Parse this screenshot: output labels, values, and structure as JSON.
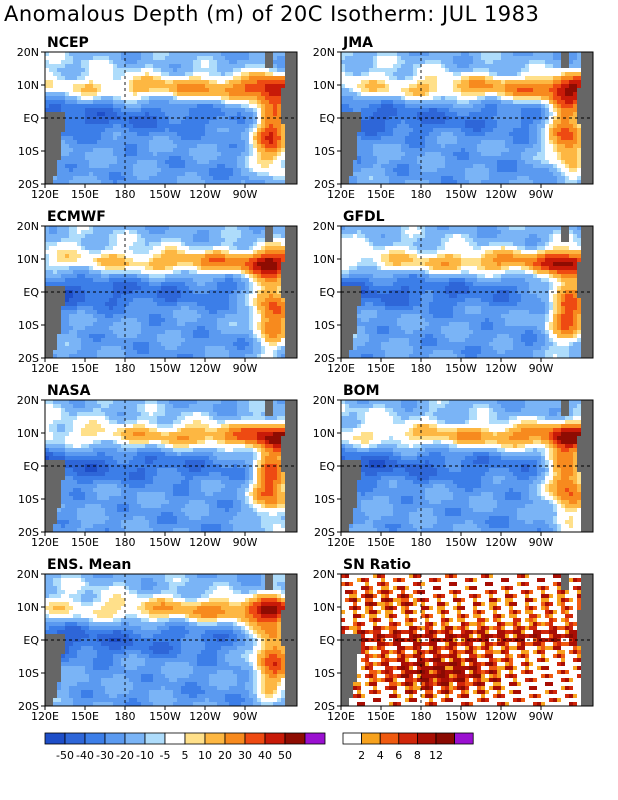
{
  "title": "Anomalous Depth (m) of 20C Isotherm: JUL 1983",
  "colors": {
    "background": "#ffffff",
    "land": "#666666",
    "grid": "#000000"
  },
  "chart_data": {
    "type": "heatmap",
    "x_ticks": [
      "120E",
      "150E",
      "180",
      "150W",
      "120W",
      "90W"
    ],
    "y_ticks": [
      "20N",
      "10N",
      "EQ",
      "10S",
      "20S"
    ],
    "reference_lines": [
      "180",
      "EQ"
    ],
    "grid": false,
    "anomaly_scale": {
      "labels": [
        "-50",
        "-40",
        "-30",
        "-20",
        "-10",
        "-5",
        "5",
        "10",
        "20",
        "30",
        "40",
        "50"
      ],
      "colors": [
        "#1e4ec8",
        "#2e66d8",
        "#3c7ee8",
        "#5b9af0",
        "#7ab4f6",
        "#aedcfb",
        "#ffffff",
        "#ffe08a",
        "#fdb742",
        "#f78a1e",
        "#ee4a12",
        "#c81a08",
        "#8e0c02",
        "#9a10d0"
      ]
    },
    "sn_scale": {
      "labels": [
        "2",
        "4",
        "6",
        "8",
        "12"
      ],
      "colors": [
        "#ffffff",
        "#f7a21e",
        "#ef5a10",
        "#d0260a",
        "#a80e04",
        "#8a0a02",
        "#9a10d0"
      ]
    },
    "panels": [
      {
        "name": "NCEP",
        "field": "anomaly"
      },
      {
        "name": "JMA",
        "field": "anomaly"
      },
      {
        "name": "ECMWF",
        "field": "anomaly"
      },
      {
        "name": "GFDL",
        "field": "anomaly"
      },
      {
        "name": "NASA",
        "field": "anomaly"
      },
      {
        "name": "BOM",
        "field": "anomaly"
      },
      {
        "name": "ENS. Mean",
        "field": "anomaly"
      },
      {
        "name": "SN Ratio",
        "field": "sn"
      }
    ]
  }
}
